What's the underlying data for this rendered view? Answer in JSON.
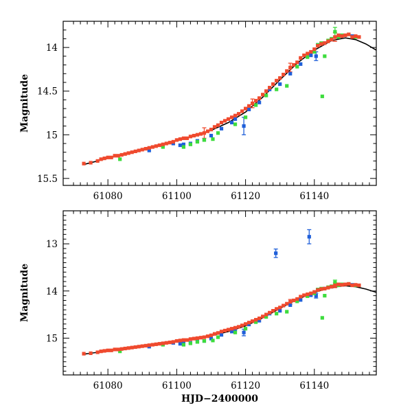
{
  "chart_data": [
    {
      "type": "scatter",
      "panel": "top",
      "xlabel": "",
      "ylabel": "Magnitude",
      "xlim": [
        61067,
        61158
      ],
      "ylim": [
        15.58,
        13.7
      ],
      "y_inverted": true,
      "xticks": [
        61080,
        61100,
        61120,
        61140
      ],
      "xtick_labels": [
        "61080",
        "61100",
        "61120",
        "61140"
      ],
      "yticks": [
        14,
        14.5,
        15,
        15.5
      ],
      "ytick_labels": [
        "14",
        "14.5",
        "15",
        "15.5"
      ],
      "model_curve": {
        "name": "model",
        "color": "#000000",
        "x": [
          61073,
          61080,
          61090,
          61100,
          61110,
          61115,
          61120,
          61125,
          61130,
          61135,
          61140,
          61145,
          61149,
          61152,
          61155,
          61158
        ],
        "y": [
          15.34,
          15.27,
          15.17,
          15.07,
          14.95,
          14.86,
          14.74,
          14.57,
          14.37,
          14.18,
          14.03,
          13.92,
          13.89,
          13.91,
          13.96,
          14.03
        ]
      },
      "series": [
        {
          "name": "red",
          "color": "#f04a2e",
          "x": [
            61073,
            61075,
            61077,
            61078,
            61079,
            61080,
            61081,
            61082,
            61083,
            61084,
            61085,
            61086,
            61087,
            61088,
            61089,
            61090,
            61091,
            61092,
            61093,
            61094,
            61095,
            61096,
            61097,
            61098,
            61099,
            61100,
            61101,
            61102,
            61103,
            61104,
            61105,
            61106,
            61107,
            61108,
            61109,
            61110,
            61111,
            61112,
            61113,
            61114,
            61115,
            61116,
            61117,
            61118,
            61119,
            61120,
            61121,
            61122,
            61123,
            61124,
            61125,
            61126,
            61127,
            61128,
            61129,
            61130,
            61131,
            61132,
            61133,
            61134,
            61135,
            61136,
            61137,
            61138,
            61139,
            61140,
            61141,
            61142,
            61143,
            61144,
            61145,
            61146,
            61147,
            61148,
            61149,
            61150,
            61151,
            61152,
            61153
          ],
          "y": [
            15.33,
            15.32,
            15.3,
            15.28,
            15.27,
            15.26,
            15.26,
            15.24,
            15.24,
            15.23,
            15.22,
            15.21,
            15.2,
            15.19,
            15.18,
            15.17,
            15.16,
            15.15,
            15.14,
            15.13,
            15.12,
            15.11,
            15.1,
            15.09,
            15.08,
            15.06,
            15.05,
            15.04,
            15.04,
            15.02,
            15.01,
            15.0,
            14.99,
            14.98,
            14.96,
            14.94,
            14.91,
            14.89,
            14.86,
            14.84,
            14.82,
            14.8,
            14.78,
            14.76,
            14.73,
            14.7,
            14.67,
            14.64,
            14.61,
            14.58,
            14.54,
            14.5,
            14.46,
            14.42,
            14.38,
            14.35,
            14.31,
            14.27,
            14.23,
            14.2,
            14.17,
            14.12,
            14.09,
            14.07,
            14.05,
            14.02,
            13.98,
            13.96,
            13.95,
            13.93,
            13.91,
            13.88,
            13.86,
            13.87,
            13.86,
            13.85,
            13.88,
            13.87,
            13.88
          ]
        },
        {
          "name": "blue",
          "color": "#1f5fd9",
          "x": [
            61092,
            61096,
            61099,
            61101,
            61102,
            61104,
            61106,
            61108,
            61110,
            61113,
            61116,
            61117,
            61119.5,
            61121,
            61124,
            61127,
            61130,
            61133,
            61136,
            61139,
            61140.5,
            61141,
            61143,
            61145,
            61148,
            61151
          ],
          "y": [
            15.18,
            15.12,
            15.1,
            15.12,
            15.11,
            15.1,
            15.07,
            15.06,
            15.01,
            14.93,
            14.86,
            14.82,
            14.9,
            14.71,
            14.63,
            14.48,
            14.42,
            14.3,
            14.19,
            14.09,
            14.1,
            13.97,
            13.95,
            13.91,
            13.87,
            13.87
          ]
        },
        {
          "name": "green",
          "color": "#3ddc3d",
          "x": [
            61083.5,
            61096,
            61102,
            61104,
            61106,
            61108,
            61110.5,
            61112,
            61117,
            61120,
            61123,
            61126,
            61129,
            61132,
            61135,
            61138,
            61140,
            61141,
            61142,
            61142.3,
            61143,
            61144,
            61145,
            61146,
            61147,
            61148,
            61150,
            61152
          ],
          "y": [
            15.28,
            15.14,
            15.14,
            15.11,
            15.08,
            15.06,
            15.05,
            14.98,
            14.88,
            14.8,
            14.66,
            14.55,
            14.48,
            14.44,
            14.22,
            14.11,
            14.05,
            13.97,
            13.95,
            14.56,
            14.1,
            13.92,
            13.9,
            13.82,
            13.88,
            13.86,
            13.85,
            13.88
          ]
        }
      ],
      "error_bars": [
        {
          "series": "blue",
          "x": 61119.5,
          "y": 14.9,
          "err": 0.1
        },
        {
          "series": "blue",
          "x": 61140.5,
          "y": 14.1,
          "err": 0.05
        },
        {
          "series": "red",
          "x": 61108,
          "y": 14.98,
          "err": 0.06
        },
        {
          "series": "red",
          "x": 61122,
          "y": 14.64,
          "err": 0.05
        },
        {
          "series": "red",
          "x": 61133,
          "y": 14.23,
          "err": 0.05
        },
        {
          "series": "red",
          "x": 61146,
          "y": 13.88,
          "err": 0.05
        },
        {
          "series": "green",
          "x": 61146,
          "y": 13.82,
          "err": 0.05
        }
      ]
    },
    {
      "type": "scatter",
      "panel": "bottom",
      "xlabel": "HJD−2400000",
      "ylabel": "Magnitude",
      "xlim": [
        61067,
        61158
      ],
      "ylim": [
        15.78,
        12.3
      ],
      "y_inverted": true,
      "xticks": [
        61080,
        61100,
        61120,
        61140
      ],
      "xtick_labels": [
        "61080",
        "61100",
        "61120",
        "61140"
      ],
      "yticks": [
        13,
        14,
        15
      ],
      "ytick_labels": [
        "13",
        "14",
        "15"
      ],
      "model_curve": {
        "name": "model",
        "color": "#000000",
        "x": [
          61073,
          61080,
          61090,
          61100,
          61110,
          61115,
          61120,
          61125,
          61130,
          61135,
          61140,
          61145,
          61149,
          61152,
          61155,
          61158
        ],
        "y": [
          15.34,
          15.27,
          15.17,
          15.07,
          14.95,
          14.86,
          14.74,
          14.57,
          14.37,
          14.18,
          14.03,
          13.92,
          13.89,
          13.91,
          13.96,
          14.03
        ]
      },
      "series": [
        {
          "name": "red",
          "color": "#f04a2e",
          "x": [
            61073,
            61075,
            61077,
            61078,
            61079,
            61080,
            61081,
            61082,
            61083,
            61084,
            61085,
            61086,
            61087,
            61088,
            61089,
            61090,
            61091,
            61092,
            61093,
            61094,
            61095,
            61096,
            61097,
            61098,
            61099,
            61100,
            61101,
            61102,
            61103,
            61104,
            61105,
            61106,
            61107,
            61108,
            61109,
            61110,
            61111,
            61112,
            61113,
            61114,
            61115,
            61116,
            61117,
            61118,
            61119,
            61120,
            61121,
            61122,
            61123,
            61124,
            61125,
            61126,
            61127,
            61128,
            61129,
            61130,
            61131,
            61132,
            61133,
            61134,
            61135,
            61136,
            61137,
            61138,
            61139,
            61140,
            61141,
            61142,
            61143,
            61144,
            61145,
            61146,
            61147,
            61148,
            61149,
            61150,
            61151,
            61152,
            61153
          ],
          "y": [
            15.33,
            15.32,
            15.3,
            15.28,
            15.27,
            15.26,
            15.26,
            15.24,
            15.24,
            15.23,
            15.22,
            15.21,
            15.2,
            15.19,
            15.18,
            15.17,
            15.16,
            15.15,
            15.14,
            15.13,
            15.12,
            15.11,
            15.1,
            15.09,
            15.08,
            15.06,
            15.05,
            15.04,
            15.04,
            15.02,
            15.01,
            15.0,
            14.99,
            14.98,
            14.96,
            14.94,
            14.91,
            14.89,
            14.86,
            14.84,
            14.82,
            14.8,
            14.78,
            14.76,
            14.73,
            14.7,
            14.67,
            14.64,
            14.61,
            14.58,
            14.54,
            14.5,
            14.46,
            14.42,
            14.38,
            14.35,
            14.31,
            14.27,
            14.23,
            14.2,
            14.17,
            14.12,
            14.09,
            14.07,
            14.05,
            14.02,
            13.98,
            13.96,
            13.95,
            13.93,
            13.91,
            13.88,
            13.86,
            13.87,
            13.86,
            13.85,
            13.88,
            13.87,
            13.88
          ]
        },
        {
          "name": "blue",
          "color": "#1f5fd9",
          "x": [
            61092,
            61096,
            61099,
            61101,
            61102,
            61104,
            61106,
            61108,
            61110,
            61113,
            61116,
            61117,
            61119.5,
            61121,
            61124,
            61127,
            61128.8,
            61130,
            61133,
            61136,
            61138.5,
            61139,
            61140.5,
            61141,
            61143,
            61145,
            61148,
            61151
          ],
          "y": [
            15.18,
            15.12,
            15.1,
            15.12,
            15.11,
            15.1,
            15.07,
            15.06,
            15.01,
            14.93,
            14.86,
            14.82,
            14.88,
            14.71,
            14.63,
            14.48,
            13.2,
            14.42,
            14.3,
            14.19,
            12.85,
            14.09,
            14.1,
            13.97,
            13.95,
            13.91,
            13.87,
            13.87
          ]
        },
        {
          "name": "green",
          "color": "#3ddc3d",
          "x": [
            61083.5,
            61096,
            61102,
            61104,
            61106,
            61108,
            61110.5,
            61112,
            61117,
            61120,
            61123,
            61126,
            61129,
            61132,
            61135,
            61138,
            61140,
            61141,
            61142,
            61142.3,
            61143,
            61144,
            61145,
            61146,
            61147,
            61148,
            61150,
            61152
          ],
          "y": [
            15.28,
            15.14,
            15.14,
            15.11,
            15.08,
            15.06,
            15.05,
            14.98,
            14.88,
            14.8,
            14.66,
            14.55,
            14.48,
            14.44,
            14.22,
            14.11,
            14.05,
            13.97,
            13.95,
            14.57,
            14.1,
            13.92,
            13.9,
            13.82,
            13.88,
            13.86,
            13.85,
            13.88
          ]
        }
      ],
      "error_bars": [
        {
          "series": "blue",
          "x": 61119.5,
          "y": 14.88,
          "err": 0.07
        },
        {
          "series": "blue",
          "x": 61128.8,
          "y": 13.2,
          "err": 0.09
        },
        {
          "series": "blue",
          "x": 61138.5,
          "y": 12.85,
          "err": 0.15
        },
        {
          "series": "blue",
          "x": 61140.5,
          "y": 14.1,
          "err": 0.05
        },
        {
          "series": "red",
          "x": 61133,
          "y": 14.23,
          "err": 0.05
        },
        {
          "series": "red",
          "x": 61146,
          "y": 13.88,
          "err": 0.05
        },
        {
          "series": "green",
          "x": 61146,
          "y": 13.82,
          "err": 0.05
        }
      ]
    }
  ]
}
